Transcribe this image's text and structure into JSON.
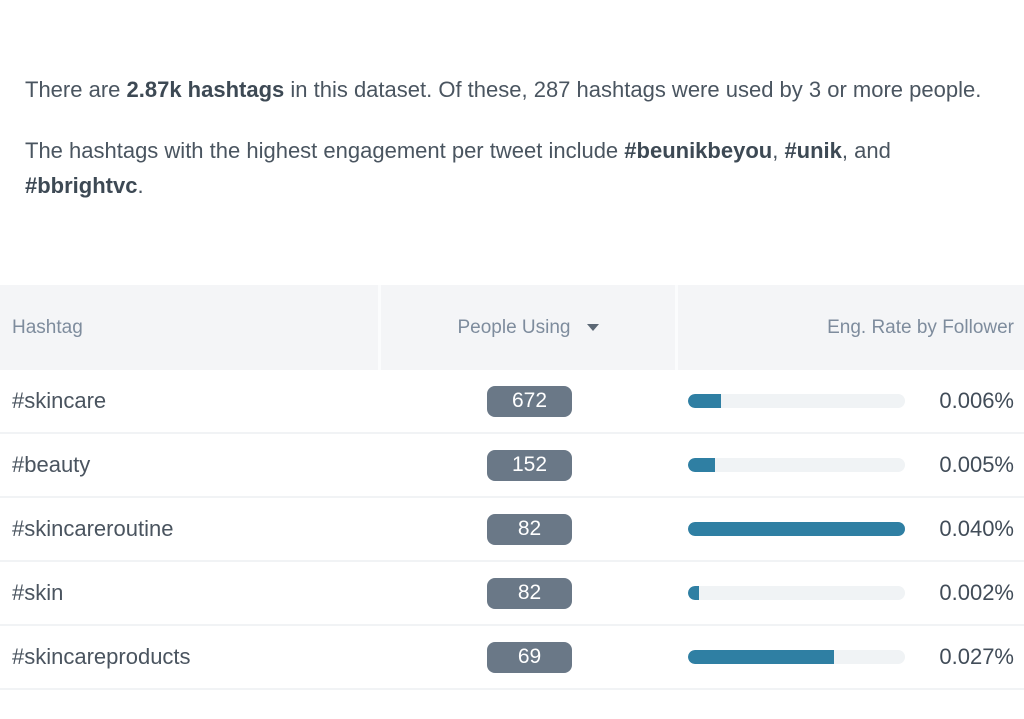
{
  "intro": {
    "p1_pre": "There are ",
    "p1_bold": "2.87k hashtags",
    "p1_post": " in this dataset. Of these, 287 hashtags were used by 3 or more people.",
    "p2_pre": "The hashtags with the highest engagement per tweet include ",
    "p2_bold1": "#beunikbeyou",
    "p2_sep1": ", ",
    "p2_bold2": "#unik",
    "p2_sep2": ", and ",
    "p2_bold3": "#bbrightvc",
    "p2_post": "."
  },
  "table": {
    "headers": {
      "hashtag": "Hashtag",
      "people_using": "People Using",
      "eng_rate": "Eng. Rate by Follower"
    },
    "sort_icon": "caret-down",
    "rows": [
      {
        "tag": "#skincare",
        "people": "672",
        "rate": "0.006%",
        "bar_pct": 15
      },
      {
        "tag": "#beauty",
        "people": "152",
        "rate": "0.005%",
        "bar_pct": 12.5
      },
      {
        "tag": "#skincareroutine",
        "people": "82",
        "rate": "0.040%",
        "bar_pct": 100
      },
      {
        "tag": "#skin",
        "people": "82",
        "rate": "0.002%",
        "bar_pct": 5
      },
      {
        "tag": "#skincareproducts",
        "people": "69",
        "rate": "0.027%",
        "bar_pct": 67.5
      }
    ]
  },
  "colors": {
    "header_bg": "#f4f5f7",
    "header_text": "#7e8c9d",
    "badge_bg": "#6a7887",
    "bar_fill": "#2f7fa3",
    "bar_track": "#f0f3f5",
    "body_text": "#4a5560"
  },
  "chart_data": {
    "type": "table",
    "title": "Hashtag engagement table",
    "columns": [
      "Hashtag",
      "People Using",
      "Eng. Rate by Follower"
    ],
    "rows": [
      [
        "#skincare",
        672,
        "0.006%"
      ],
      [
        "#beauty",
        152,
        "0.005%"
      ],
      [
        "#skincareroutine",
        82,
        "0.040%"
      ],
      [
        "#skin",
        82,
        "0.002%"
      ],
      [
        "#skincareproducts",
        69,
        "0.027%"
      ]
    ],
    "bar_scale_max_rate_pct": 0.04,
    "sorted_by": "People Using (descending)"
  }
}
